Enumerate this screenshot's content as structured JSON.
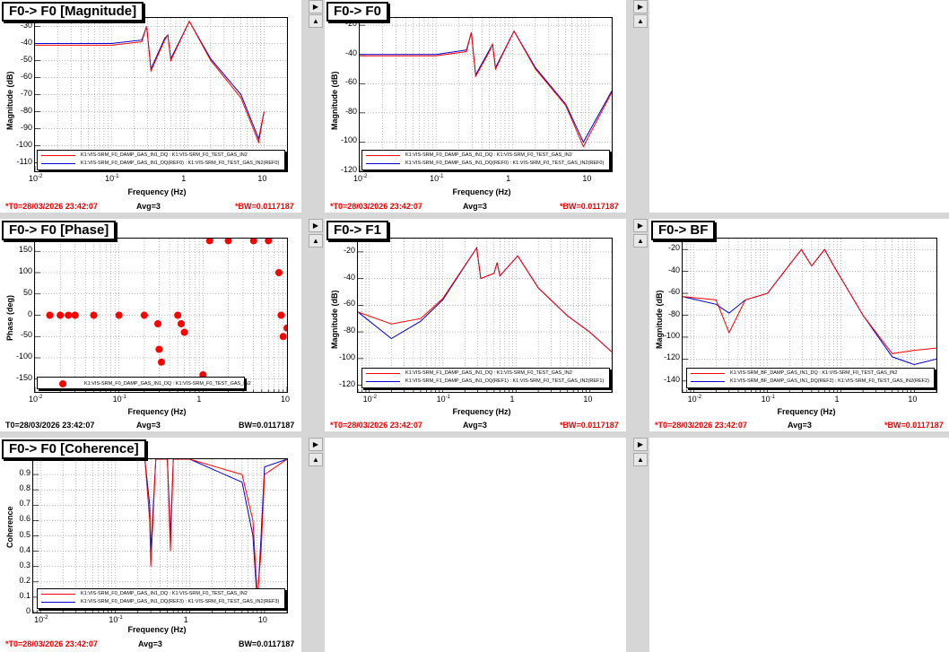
{
  "panels": {
    "mag": {
      "title": "F0-> F0 [Magnitude]",
      "ylabel": "Magnitude (dB)",
      "xlabel": "Frequency (Hz)",
      "foot_left": "*T0=28/03/2026 23:42:07",
      "foot_mid": "Avg=3",
      "foot_right": "*BW=0.0117187",
      "legend": [
        "K1:VIS-SRM_F0_DAMP_GAS_IN1_DQ : K1:VIS-SRM_F0_TEST_GAS_IN2",
        "K1:VIS-SRM_F0_DAMP_GAS_IN1_DQ(REF0) : K1:VIS-SRM_F0_TEST_GAS_IN2(REF0)"
      ],
      "yticks": [
        "-30",
        "-40",
        "-50",
        "-60",
        "-70",
        "-80",
        "-90",
        "-100",
        "-110"
      ],
      "xticks": [
        "10",
        "10",
        "1",
        "10"
      ],
      "xexp": [
        "-2",
        "-1",
        "",
        ""
      ]
    },
    "f0": {
      "title": "F0-> F0",
      "ylabel": "Magnitude (dB)",
      "xlabel": "Frequency (Hz)",
      "foot_left": "*T0=28/03/2026 23:42:07",
      "foot_mid": "Avg=3",
      "foot_right": "*BW=0.0117187",
      "legend": [
        "K1:VIS-SRM_F0_DAMP_GAS_IN1_DQ : K1:VIS-SRM_F0_TEST_GAS_IN2",
        "K1:VIS-SRM_F0_DAMP_GAS_IN1_DQ(REF0) : K1:VIS-SRM_F0_TEST_GAS_IN2(REF0)"
      ],
      "yticks": [
        "-20",
        "-40",
        "-60",
        "-80",
        "-100",
        "-120"
      ]
    },
    "phase": {
      "title": "F0-> F0 [Phase]",
      "ylabel": "Phase (deg)",
      "xlabel": "Frequency (Hz)",
      "foot_left": "T0=28/03/2026 23:42:07",
      "foot_mid": "Avg=3",
      "foot_right": "BW=0.0117187",
      "legend": [
        "K1:VIS-SRM_F0_DAMP_GAS_IN1_DQ : K1:VIS-SRM_F0_TEST_GAS_IN2"
      ],
      "yticks": [
        "150",
        "100",
        "50",
        "0",
        "-50",
        "-100",
        "-150"
      ]
    },
    "f1": {
      "title": "F0-> F1",
      "ylabel": "Magnitude (dB)",
      "xlabel": "Frequency (Hz)",
      "foot_left": "*T0=28/03/2026 23:42:07",
      "foot_mid": "Avg=3",
      "foot_right": "*BW=0.0117187",
      "legend": [
        "K1:VIS-SRM_F1_DAMP_GAS_IN1_DQ : K1:VIS-SRM_F0_TEST_GAS_IN2",
        "K1:VIS-SRM_F1_DAMP_GAS_IN1_DQ(REF1) : K1:VIS-SRM_F0_TEST_GAS_IN2(REF1)"
      ],
      "yticks": [
        "-20",
        "-40",
        "-60",
        "-80",
        "-100",
        "-120"
      ]
    },
    "bf": {
      "title": "F0-> BF",
      "ylabel": "Magnitude (dB)",
      "xlabel": "Frequency (Hz)",
      "foot_left": "*T0=28/03/2026 23:42:07",
      "foot_mid": "Avg=3",
      "foot_right": "*BW=0.0117187",
      "legend": [
        "K1:VIS-SRM_BF_DAMP_GAS_IN1_DQ : K1:VIS-SRM_F0_TEST_GAS_IN2",
        "K1:VIS-SRM_BF_DAMP_GAS_IN1_DQ(REF2) : K1:VIS-SRM_F0_TEST_GAS_IN2(REF2)"
      ],
      "yticks": [
        "-20",
        "-40",
        "-60",
        "-80",
        "-100",
        "-120",
        "-140"
      ]
    },
    "coh": {
      "title": "F0-> F0 [Coherence]",
      "ylabel": "Coherence",
      "xlabel": "Frequency (Hz)",
      "foot_left": "*T0=28/03/2026 23:42:07",
      "foot_mid": "Avg=3",
      "foot_right": "BW=0.0117187",
      "legend": [
        "K1:VIS-SRM_F0_DAMP_GAS_IN1_DQ : K1:VIS-SRM_F0_TEST_GAS_IN2",
        "K1:VIS-SRM_F0_DAMP_GAS_IN1_DQ(REF3) : K1:VIS-SRM_F0_TEST_GAS_IN2(REF3)"
      ],
      "yticks": [
        "0.9",
        "0.8",
        "0.7",
        "0.6",
        "0.5",
        "0.4",
        "0.3",
        "0.2",
        "0.1",
        "0"
      ]
    }
  },
  "xtick_labels": {
    "m2": "10",
    "m2_exp": "-2",
    "m1": "10",
    "m1_exp": "-1",
    "one": "1",
    "ten": "10"
  },
  "colors": {
    "current": "#ff0000",
    "reference": "#0000cc",
    "frame": "#000000",
    "background": "#d6d6d6"
  },
  "chart_data": [
    {
      "type": "line",
      "title": "F0-> F0 [Magnitude]",
      "xlabel": "Frequency (Hz)",
      "ylabel": "Magnitude (dB)",
      "xscale": "log",
      "xlim": [
        0.01,
        20
      ],
      "ylim": [
        -115,
        -25
      ],
      "series": [
        {
          "name": "K1:VIS-SRM_F0_DAMP_GAS_IN1_DQ : K1:VIS-SRM_F0_TEST_GAS_IN2",
          "x": [
            0.01,
            0.1,
            0.25,
            0.29,
            0.33,
            0.5,
            0.55,
            0.6,
            1.05,
            2,
            5,
            8.5,
            10
          ],
          "y": [
            -41,
            -41,
            -39,
            -30,
            -56,
            -38,
            -35,
            -50,
            -27,
            -50,
            -72,
            -98,
            -80
          ]
        },
        {
          "name": "K1:VIS-SRM_F0_DAMP_GAS_IN1_DQ(REF0) : K1:VIS-SRM_F0_TEST_GAS_IN2(REF0)",
          "x": [
            0.01,
            0.1,
            0.25,
            0.29,
            0.33,
            0.5,
            0.55,
            0.6,
            1.05,
            2,
            5,
            8.5,
            10
          ],
          "y": [
            -40,
            -40,
            -38,
            -30,
            -55,
            -37,
            -35,
            -49,
            -27,
            -49,
            -70,
            -96,
            -80
          ]
        }
      ]
    },
    {
      "type": "line",
      "title": "F0-> F0",
      "xlabel": "Frequency (Hz)",
      "ylabel": "Magnitude (dB)",
      "xscale": "log",
      "xlim": [
        0.01,
        20
      ],
      "ylim": [
        -120,
        -15
      ],
      "series": [
        {
          "name": "K1:VIS-SRM_F0_DAMP_GAS_IN1_DQ : K1:VIS-SRM_F0_TEST_GAS_IN2",
          "x": [
            0.01,
            0.1,
            0.25,
            0.29,
            0.33,
            0.5,
            0.55,
            0.6,
            1.05,
            2,
            5,
            8.5,
            20
          ],
          "y": [
            -41,
            -41,
            -38,
            -25,
            -55,
            -38,
            -33,
            -50,
            -24,
            -50,
            -75,
            -103,
            -66
          ]
        },
        {
          "name": "K1:VIS-SRM_F0_DAMP_GAS_IN1_DQ(REF0) : K1:VIS-SRM_F0_TEST_GAS_IN2(REF0)",
          "x": [
            0.01,
            0.1,
            0.25,
            0.29,
            0.33,
            0.5,
            0.55,
            0.6,
            1.05,
            2,
            5,
            8.5,
            20
          ],
          "y": [
            -40,
            -40,
            -37,
            -25,
            -54,
            -37,
            -33,
            -49,
            -24,
            -49,
            -74,
            -100,
            -65
          ]
        }
      ]
    },
    {
      "type": "scatter",
      "title": "F0-> F0 [Phase]",
      "xlabel": "Frequency (Hz)",
      "ylabel": "Phase (deg)",
      "xscale": "log",
      "xlim": [
        0.01,
        10
      ],
      "ylim": [
        -180,
        180
      ],
      "series": [
        {
          "name": "K1:VIS-SRM_F0_DAMP_GAS_IN1_DQ : K1:VIS-SRM_F0_TEST_GAS_IN2",
          "x": [
            0.015,
            0.02,
            0.025,
            0.03,
            0.05,
            0.1,
            0.2,
            0.29,
            0.3,
            0.32,
            0.5,
            0.55,
            0.6,
            1.0,
            1.1,
            1.2,
            2,
            4,
            6,
            8,
            8.5,
            9,
            10
          ],
          "y": [
            0,
            0,
            0,
            0,
            0,
            0,
            0,
            -20,
            -80,
            -110,
            0,
            -20,
            -40,
            -140,
            -170,
            175,
            175,
            175,
            175,
            100,
            0,
            -50,
            -30
          ]
        }
      ]
    },
    {
      "type": "line",
      "title": "F0-> F1",
      "xlabel": "Frequency (Hz)",
      "ylabel": "Magnitude (dB)",
      "xscale": "log",
      "xlim": [
        0.007,
        20
      ],
      "ylim": [
        -125,
        -10
      ],
      "series": [
        {
          "name": "K1:VIS-SRM_F1_DAMP_GAS_IN1_DQ : K1:VIS-SRM_F0_TEST_GAS_IN2",
          "x": [
            0.007,
            0.02,
            0.05,
            0.1,
            0.29,
            0.33,
            0.5,
            0.55,
            0.6,
            1.05,
            2,
            5,
            10,
            20
          ],
          "y": [
            -65,
            -74,
            -70,
            -55,
            -17,
            -40,
            -36,
            -28,
            -38,
            -23,
            -47,
            -68,
            -80,
            -95
          ]
        },
        {
          "name": "K1:VIS-SRM_F1_DAMP_GAS_IN1_DQ(REF1) : K1:VIS-SRM_F0_TEST_GAS_IN2(REF1)",
          "x": [
            0.007,
            0.02,
            0.05,
            0.1,
            0.29,
            0.33,
            0.5,
            0.55,
            0.6,
            1.05,
            2,
            5,
            10,
            20
          ],
          "y": [
            -65,
            -85,
            -72,
            -56,
            -17,
            -40,
            -36,
            -28,
            -38,
            -23,
            -47,
            -68,
            -80,
            -95
          ]
        }
      ]
    },
    {
      "type": "line",
      "title": "F0-> BF",
      "xlabel": "Frequency (Hz)",
      "ylabel": "Magnitude (dB)",
      "xscale": "log",
      "xlim": [
        0.007,
        20
      ],
      "ylim": [
        -150,
        -10
      ],
      "series": [
        {
          "name": "K1:VIS-SRM_BF_DAMP_GAS_IN1_DQ : K1:VIS-SRM_F0_TEST_GAS_IN2",
          "x": [
            0.007,
            0.02,
            0.03,
            0.05,
            0.1,
            0.29,
            0.4,
            0.6,
            0.8,
            2,
            5,
            10,
            20
          ],
          "y": [
            -63,
            -66,
            -96,
            -66,
            -60,
            -20,
            -35,
            -20,
            -35,
            -80,
            -115,
            -112,
            -110
          ]
        },
        {
          "name": "K1:VIS-SRM_BF_DAMP_GAS_IN1_DQ(REF2) : K1:VIS-SRM_F0_TEST_GAS_IN2(REF2)",
          "x": [
            0.007,
            0.02,
            0.03,
            0.05,
            0.1,
            0.29,
            0.4,
            0.6,
            0.8,
            2,
            5,
            10,
            20
          ],
          "y": [
            -63,
            -70,
            -78,
            -66,
            -60,
            -20,
            -35,
            -20,
            -35,
            -80,
            -118,
            -125,
            -120
          ]
        }
      ]
    },
    {
      "type": "line",
      "title": "F0-> F0 [Coherence]",
      "xlabel": "Frequency (Hz)",
      "ylabel": "Coherence",
      "xscale": "log",
      "xlim": [
        0.008,
        20
      ],
      "ylim": [
        0,
        1
      ],
      "series": [
        {
          "name": "K1:VIS-SRM_F0_DAMP_GAS_IN1_DQ : K1:VIS-SRM_F0_TEST_GAS_IN2",
          "x": [
            0.01,
            0.25,
            0.29,
            0.3,
            0.35,
            0.5,
            0.55,
            0.6,
            1,
            5,
            7,
            8,
            9,
            10,
            20
          ],
          "y": [
            1,
            1,
            0.6,
            0.3,
            1,
            1,
            0.4,
            1,
            1,
            0.9,
            0.6,
            0.1,
            0.4,
            0.9,
            1
          ]
        },
        {
          "name": "K1:VIS-SRM_F0_DAMP_GAS_IN1_DQ(REF3) : K1:VIS-SRM_F0_TEST_GAS_IN2(REF3)",
          "x": [
            0.01,
            0.25,
            0.29,
            0.3,
            0.35,
            0.5,
            0.55,
            0.6,
            1,
            5,
            7,
            8,
            9,
            10,
            20
          ],
          "y": [
            1,
            1,
            0.7,
            0.4,
            1,
            1,
            0.5,
            1,
            1,
            0.85,
            0.5,
            0.05,
            0.5,
            0.95,
            1
          ]
        }
      ]
    }
  ]
}
